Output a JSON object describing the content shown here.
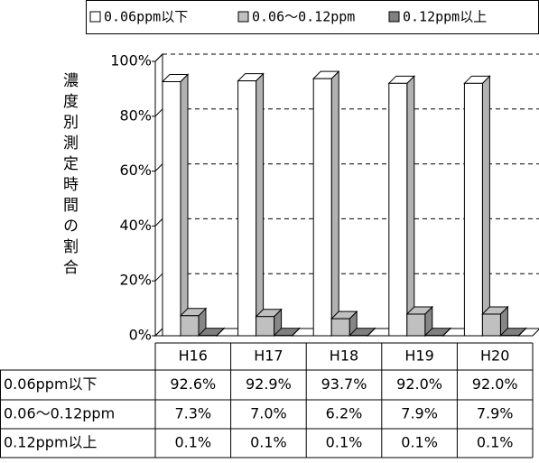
{
  "chart_data": {
    "type": "bar",
    "y_axis_label": "濃度別測定時間の割合",
    "categories": [
      "H16",
      "H17",
      "H18",
      "H19",
      "H20"
    ],
    "series": [
      {
        "name": "0.06ppm以下",
        "color": "#ffffff",
        "values": [
          92.6,
          92.9,
          93.7,
          92.0,
          92.0
        ],
        "value_labels": [
          "92.6%",
          "92.9%",
          "93.7%",
          "92.0%",
          "92.0%"
        ]
      },
      {
        "name": "0.06～0.12ppm",
        "color": "#c0c0c0",
        "values": [
          7.3,
          7.0,
          6.2,
          7.9,
          7.9
        ],
        "value_labels": [
          "7.3%",
          "7.0%",
          "6.2%",
          "7.9%",
          "7.9%"
        ]
      },
      {
        "name": "0.12ppm以上",
        "color": "#808080",
        "values": [
          0.1,
          0.1,
          0.1,
          0.1,
          0.1
        ],
        "value_labels": [
          "0.1%",
          "0.1%",
          "0.1%",
          "0.1%",
          "0.1%"
        ]
      }
    ],
    "ylim": [
      0,
      100
    ],
    "yticks": [
      {
        "value": 0,
        "label": "0%"
      },
      {
        "value": 20,
        "label": "20%"
      },
      {
        "value": 40,
        "label": "40%"
      },
      {
        "value": 60,
        "label": "60%"
      },
      {
        "value": 80,
        "label": "80%"
      },
      {
        "value": 100,
        "label": "100%"
      }
    ],
    "grid": true
  }
}
